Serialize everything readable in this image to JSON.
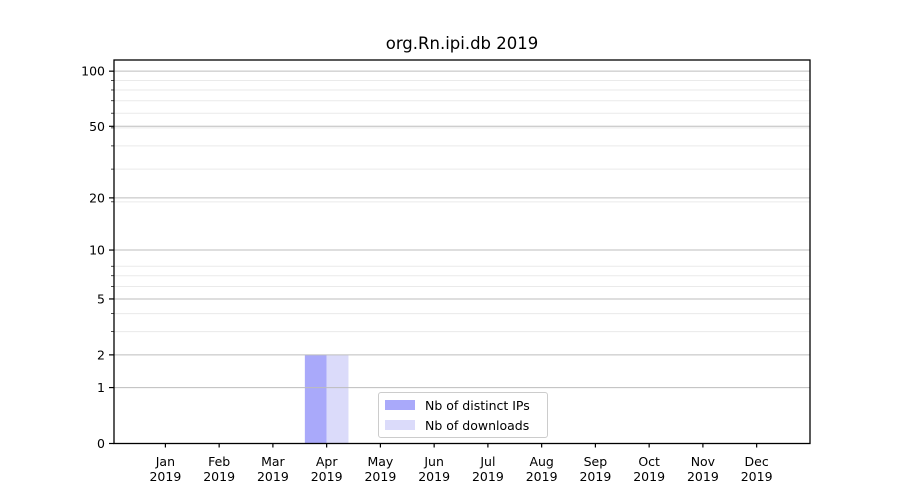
{
  "title": "org.Rn.ipi.db 2019",
  "chart_data": {
    "type": "bar",
    "title": "org.Rn.ipi.db 2019",
    "categories": [
      "Jan",
      "Feb",
      "Mar",
      "Apr",
      "May",
      "Jun",
      "Jul",
      "Aug",
      "Sep",
      "Oct",
      "Nov",
      "Dec"
    ],
    "category_year": "2019",
    "series": [
      {
        "name": "Nb of distinct IPs",
        "color": "#a9a9fa",
        "values": [
          0,
          0,
          0,
          2,
          0,
          0,
          0,
          0,
          0,
          0,
          0,
          0
        ]
      },
      {
        "name": "Nb of downloads",
        "color": "#dbdbfa",
        "values": [
          0,
          0,
          0,
          2,
          0,
          0,
          0,
          0,
          0,
          0,
          0,
          0
        ]
      }
    ],
    "xlabel": "",
    "ylabel": "",
    "yscale": "log10(1+y)",
    "ylim": [
      0,
      115
    ],
    "yticks_major": [
      0,
      1,
      2,
      5,
      10,
      20,
      50,
      100
    ],
    "yticks_minor": [
      3,
      4,
      6,
      7,
      8,
      19,
      29,
      39,
      49,
      59,
      69,
      79,
      89
    ],
    "grid": {
      "major": true,
      "minor": true,
      "orientation": "horizontal"
    },
    "legend_position": "inside lower center"
  },
  "colors": {
    "background": "#ffffff",
    "axis": "#000000",
    "text": "#000000",
    "grid_major": "#bdbdbd",
    "grid_minor": "#eaeaea",
    "legend_border": "#cccccc"
  }
}
